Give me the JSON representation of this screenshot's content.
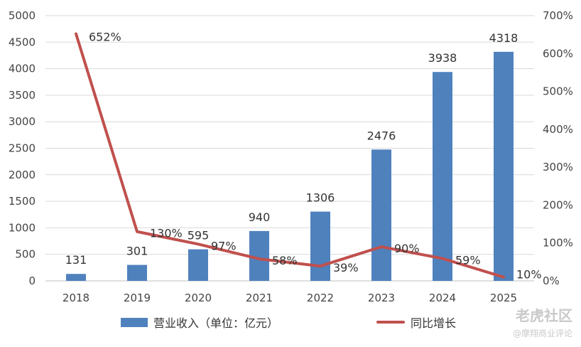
{
  "chart_data": {
    "type": "bar",
    "categories": [
      "2018",
      "2019",
      "2020",
      "2021",
      "2022",
      "2023",
      "2024",
      "2025"
    ],
    "series": [
      {
        "name": "营业收入（单位：亿元）",
        "type": "bar",
        "axis": "left",
        "values": [
          131,
          301,
          595,
          940,
          1306,
          2476,
          3938,
          4318
        ],
        "labels": [
          "131",
          "301",
          "595",
          "940",
          "1306",
          "2476",
          "3938",
          "4318"
        ],
        "color": "#4f81bd"
      },
      {
        "name": "同比增长",
        "type": "line",
        "axis": "right",
        "values": [
          652,
          130,
          97,
          58,
          39,
          90,
          59,
          10
        ],
        "labels": [
          "652%",
          "130%",
          "97%",
          "58%",
          "39%",
          "90%",
          "59%",
          "10%"
        ],
        "color": "#c0504d"
      }
    ],
    "ylim": [
      0,
      5000
    ],
    "y_ticks": [
      "0",
      "500",
      "1000",
      "1500",
      "2000",
      "2500",
      "3000",
      "3500",
      "4000",
      "4500",
      "5000"
    ],
    "y2lim": [
      0,
      700
    ],
    "y2_ticks": [
      "0%",
      "100%",
      "200%",
      "300%",
      "400%",
      "500%",
      "600%",
      "700%"
    ],
    "grid": true,
    "legend_position": "bottom"
  },
  "watermark": {
    "main": "老虎社区",
    "sub": "@摩翔商业评论"
  }
}
